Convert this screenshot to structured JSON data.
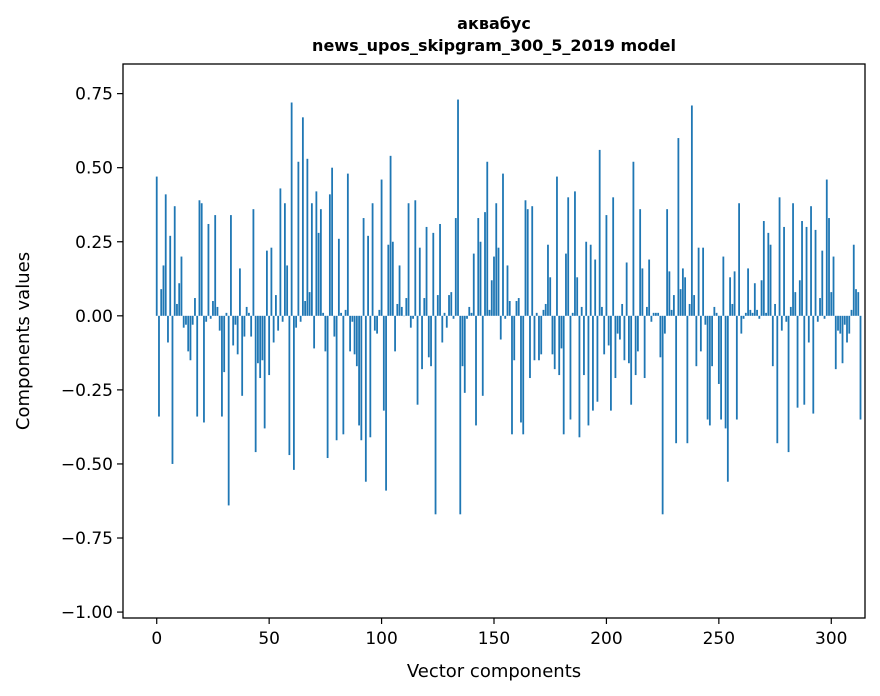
{
  "chart_data": {
    "type": "bar",
    "title_line1": "аквабус",
    "title_line2": "news_upos_skipgram_300_5_2019 model",
    "xlabel": "Vector components",
    "ylabel": "Components values",
    "xlim": [
      -15,
      315
    ],
    "ylim": [
      -1.02,
      0.85
    ],
    "xticks": [
      0,
      50,
      100,
      150,
      200,
      250,
      300
    ],
    "xtick_labels": [
      "0",
      "50",
      "100",
      "150",
      "200",
      "250",
      "300"
    ],
    "yticks": [
      -1.0,
      -0.75,
      -0.5,
      -0.25,
      0.0,
      0.25,
      0.5,
      0.75
    ],
    "ytick_labels": [
      "−1.00",
      "−0.75",
      "−0.50",
      "−0.25",
      "0.00",
      "0.25",
      "0.50",
      "0.75"
    ],
    "bar_color": "#1f77b4",
    "values": [
      0.47,
      -0.34,
      0.09,
      0.17,
      0.41,
      -0.09,
      0.27,
      -0.5,
      0.37,
      0.04,
      0.11,
      0.2,
      -0.04,
      -0.03,
      -0.12,
      -0.15,
      -0.03,
      0.06,
      -0.34,
      0.39,
      0.38,
      -0.36,
      -0.02,
      0.31,
      -0.01,
      0.05,
      0.34,
      0.03,
      -0.05,
      -0.34,
      -0.19,
      0.01,
      -0.64,
      0.34,
      -0.1,
      -0.03,
      -0.13,
      0.16,
      -0.27,
      -0.07,
      0.03,
      0.01,
      -0.07,
      0.36,
      -0.46,
      -0.16,
      -0.21,
      -0.15,
      -0.38,
      0.22,
      -0.2,
      0.23,
      -0.09,
      0.07,
      -0.05,
      0.43,
      -0.02,
      0.38,
      0.17,
      -0.47,
      0.72,
      -0.52,
      -0.04,
      0.52,
      -0.02,
      0.67,
      0.05,
      0.53,
      0.08,
      0.38,
      -0.11,
      0.42,
      0.28,
      0.36,
      0.01,
      -0.12,
      -0.48,
      0.41,
      0.5,
      -0.07,
      -0.42,
      0.26,
      0.01,
      -0.4,
      0.02,
      0.48,
      -0.12,
      -0.02,
      -0.13,
      -0.17,
      -0.37,
      -0.42,
      0.33,
      -0.56,
      0.27,
      -0.41,
      0.38,
      -0.05,
      -0.06,
      0.02,
      0.46,
      -0.32,
      -0.59,
      0.24,
      0.54,
      0.25,
      -0.12,
      0.04,
      0.17,
      0.03,
      0.0,
      0.06,
      0.38,
      -0.04,
      -0.01,
      0.39,
      -0.3,
      0.23,
      -0.18,
      0.06,
      0.3,
      -0.14,
      -0.17,
      0.28,
      -0.67,
      0.07,
      0.31,
      -0.09,
      0.01,
      -0.04,
      0.07,
      0.08,
      -0.01,
      0.33,
      0.73,
      -0.67,
      -0.17,
      -0.26,
      -0.01,
      0.03,
      0.01,
      0.21,
      -0.37,
      0.33,
      0.25,
      -0.27,
      0.35,
      0.52,
      0.02,
      0.12,
      0.2,
      0.38,
      0.23,
      -0.08,
      0.48,
      -0.01,
      0.17,
      0.05,
      -0.4,
      -0.15,
      0.05,
      0.06,
      -0.36,
      -0.4,
      0.39,
      0.36,
      -0.21,
      0.37,
      -0.15,
      0.01,
      -0.15,
      -0.13,
      0.02,
      0.04,
      0.24,
      0.13,
      -0.13,
      -0.18,
      0.47,
      -0.2,
      -0.11,
      -0.4,
      0.21,
      0.4,
      -0.35,
      0.01,
      0.42,
      0.13,
      -0.41,
      0.03,
      -0.2,
      0.25,
      -0.37,
      0.24,
      -0.32,
      0.19,
      -0.29,
      0.56,
      0.03,
      -0.13,
      0.34,
      -0.1,
      -0.32,
      0.4,
      -0.21,
      -0.06,
      -0.08,
      0.04,
      -0.15,
      0.18,
      -0.16,
      -0.3,
      0.52,
      -0.2,
      -0.12,
      0.36,
      0.16,
      -0.21,
      0.03,
      0.19,
      -0.02,
      0.01,
      0.01,
      0.01,
      -0.14,
      -0.67,
      -0.06,
      0.36,
      0.15,
      0.02,
      0.07,
      -0.43,
      0.6,
      0.09,
      0.16,
      0.13,
      -0.43,
      0.04,
      0.71,
      0.07,
      -0.17,
      0.23,
      -0.12,
      0.23,
      -0.03,
      -0.35,
      -0.37,
      -0.17,
      0.03,
      0.01,
      -0.23,
      -0.35,
      0.2,
      -0.38,
      -0.56,
      0.13,
      0.04,
      0.15,
      -0.35,
      0.38,
      -0.06,
      -0.01,
      0.01,
      0.16,
      0.02,
      0.01,
      0.11,
      0.02,
      -0.01,
      0.12,
      0.32,
      0.01,
      0.28,
      0.24,
      -0.17,
      0.04,
      -0.43,
      0.4,
      -0.05,
      0.3,
      -0.02,
      -0.46,
      0.03,
      0.38,
      0.08,
      -0.31,
      0.12,
      0.32,
      -0.3,
      0.3,
      -0.09,
      0.37,
      -0.33,
      0.29,
      -0.02,
      0.06,
      0.22,
      -0.01,
      0.46,
      0.33,
      0.08,
      0.2,
      -0.18,
      -0.05,
      -0.06,
      -0.16,
      -0.03,
      -0.09,
      -0.06,
      0.02,
      0.24,
      0.09,
      0.08,
      -0.35
    ]
  }
}
